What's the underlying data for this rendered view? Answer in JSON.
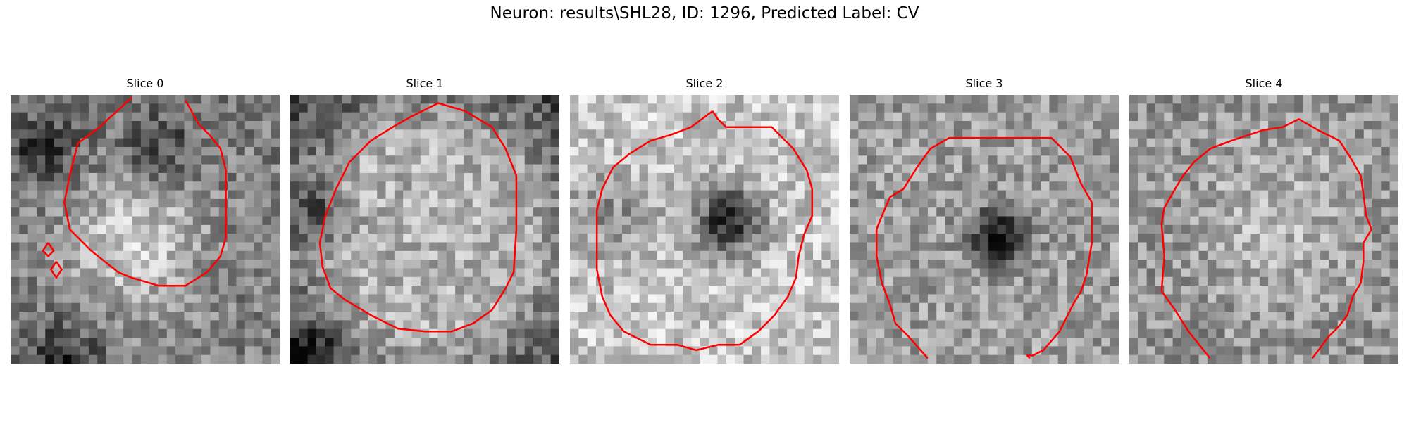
{
  "figure": {
    "title": "Neuron: results\\SHL28, ID: 1296, Predicted Label: CV"
  },
  "panels": [
    {
      "title": "Slice 0"
    },
    {
      "title": "Slice 1"
    },
    {
      "title": "Slice 2"
    },
    {
      "title": "Slice 3"
    },
    {
      "title": "Slice 4"
    }
  ],
  "colors": {
    "contour": "#ff0000",
    "background": "#ffffff"
  }
}
